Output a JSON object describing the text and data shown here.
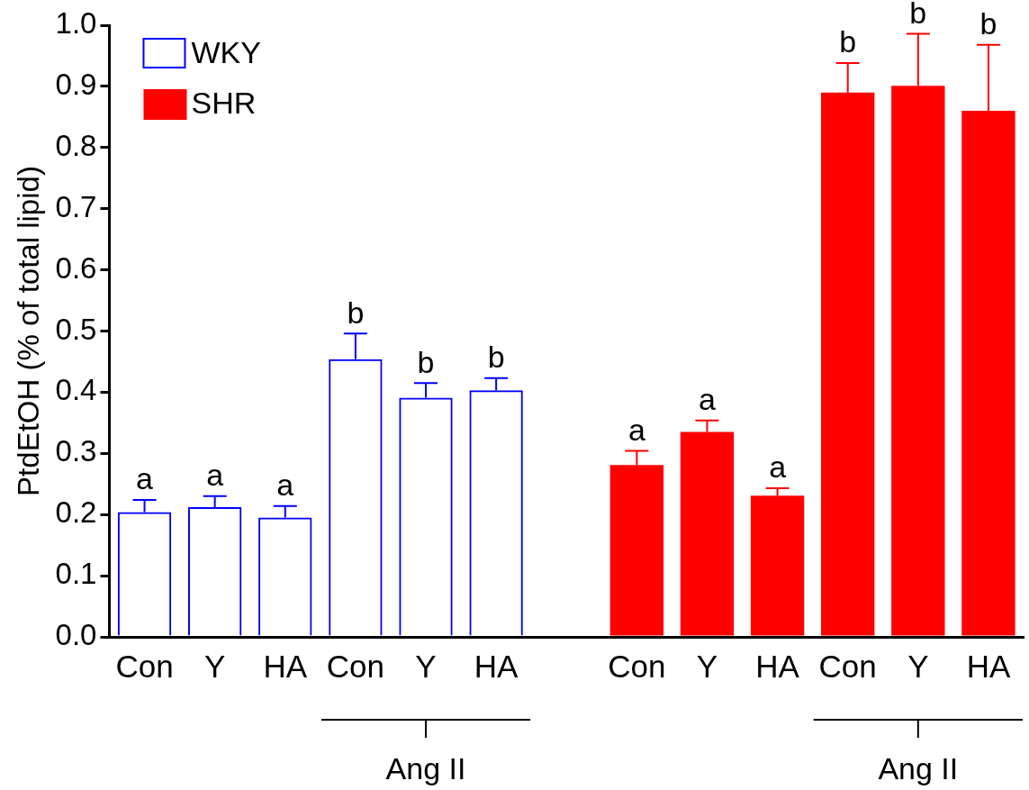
{
  "chart_data": {
    "type": "bar",
    "ylabel": "PtdEtOH (% of total lipid)",
    "categories": [
      "Con",
      "Y",
      "HA",
      "Con",
      "Y",
      "HA",
      null,
      "Con",
      "Y",
      "HA",
      "Con",
      "Y",
      "HA"
    ],
    "series": [
      {
        "name": "WKY",
        "color": "#0000ff",
        "values": [
          0.204,
          0.212,
          0.195,
          0.454,
          0.391,
          0.403,
          null,
          null,
          null,
          null,
          null,
          null,
          null
        ],
        "errors": [
          [
            0.204,
            0.224
          ],
          [
            0.212,
            0.23
          ],
          [
            0.195,
            0.214
          ],
          [
            0.454,
            0.496
          ],
          [
            0.391,
            0.415
          ],
          [
            0.403,
            0.423
          ],
          null,
          null,
          null,
          null,
          null,
          null,
          null
        ],
        "value_labels": [
          "a",
          "a",
          "a",
          "b",
          "b",
          "b",
          null,
          null,
          null,
          null,
          null,
          null,
          null
        ]
      },
      {
        "name": "SHR",
        "color": "#ff0000",
        "values": [
          null,
          null,
          null,
          null,
          null,
          null,
          null,
          0.281,
          0.335,
          0.231,
          0.89,
          0.901,
          0.86
        ],
        "errors": [
          null,
          null,
          null,
          null,
          null,
          null,
          null,
          [
            0.281,
            0.304
          ],
          [
            0.335,
            0.354
          ],
          [
            0.231,
            0.243
          ],
          [
            0.89,
            0.938
          ],
          [
            0.901,
            0.986
          ],
          [
            0.86,
            0.968
          ]
        ],
        "value_labels": [
          null,
          null,
          null,
          null,
          null,
          null,
          null,
          "a",
          "a",
          "a",
          "b",
          "b",
          "b"
        ]
      }
    ],
    "ylim": [
      0,
      1
    ],
    "yticks": [
      {
        "value": 0,
        "label": "0.0"
      },
      {
        "value": 0.1,
        "label": "0.1"
      },
      {
        "value": 0.2,
        "label": "0.2"
      },
      {
        "value": 0.3,
        "label": "0.3"
      },
      {
        "value": 0.4,
        "label": "0.4"
      },
      {
        "value": 0.5,
        "label": "0.5"
      },
      {
        "value": 0.6,
        "label": "0.6"
      },
      {
        "value": 0.7,
        "label": "0.7"
      },
      {
        "value": 0.8,
        "label": "0.8"
      },
      {
        "value": 0.9,
        "label": "0.9"
      },
      {
        "value": 1,
        "label": "1.0"
      }
    ],
    "annotations": [
      "Ang II",
      "Ang II"
    ],
    "legend": "top left",
    "grid": false
  }
}
